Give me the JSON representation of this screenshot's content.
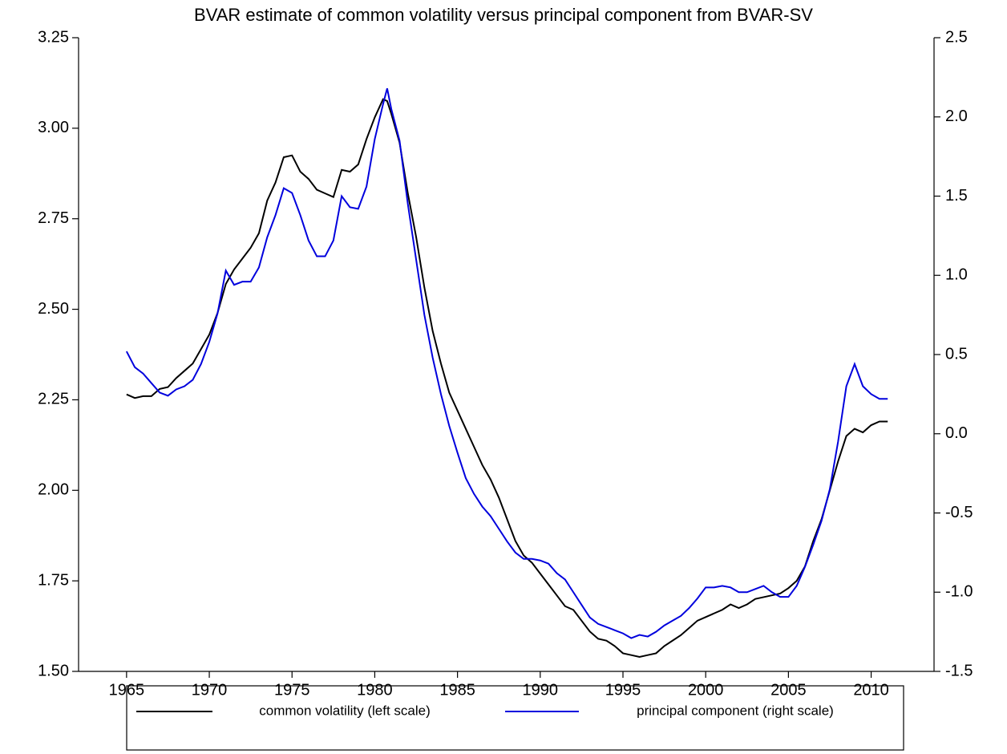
{
  "chart_data": {
    "type": "line",
    "title": "BVAR estimate of common volatility versus principal component from BVAR-SV",
    "x": [
      1965,
      1965.5,
      1966,
      1966.5,
      1967,
      1967.5,
      1968,
      1968.5,
      1969,
      1969.5,
      1970,
      1970.5,
      1971,
      1971.5,
      1972,
      1972.5,
      1973,
      1973.5,
      1974,
      1974.5,
      1975,
      1975.5,
      1976,
      1976.5,
      1977,
      1977.5,
      1978,
      1978.5,
      1979,
      1979.5,
      1980,
      1980.5,
      1980.75,
      1981,
      1981.5,
      1982,
      1982.5,
      1983,
      1983.5,
      1984,
      1984.5,
      1985,
      1985.5,
      1986,
      1986.5,
      1987,
      1987.5,
      1988,
      1988.5,
      1989,
      1989.5,
      1990,
      1990.5,
      1991,
      1991.5,
      1992,
      1992.5,
      1993,
      1993.5,
      1994,
      1994.5,
      1995,
      1995.5,
      1996,
      1996.5,
      1997,
      1997.5,
      1998,
      1998.5,
      1999,
      1999.5,
      2000,
      2000.5,
      2001,
      2001.5,
      2002,
      2002.5,
      2003,
      2003.5,
      2004,
      2004.5,
      2005,
      2005.5,
      2006,
      2006.5,
      2007,
      2007.5,
      2008,
      2008.5,
      2009,
      2009.5,
      2010,
      2010.5,
      2011
    ],
    "series": [
      {
        "name": "common volatility (left scale)",
        "color": "#000000",
        "axis": "y",
        "values": [
          2.265,
          2.255,
          2.26,
          2.26,
          2.28,
          2.285,
          2.31,
          2.33,
          2.35,
          2.39,
          2.43,
          2.49,
          2.57,
          2.61,
          2.64,
          2.67,
          2.71,
          2.8,
          2.85,
          2.92,
          2.925,
          2.88,
          2.86,
          2.83,
          2.82,
          2.81,
          2.885,
          2.88,
          2.9,
          2.97,
          3.03,
          3.08,
          3.075,
          3.04,
          2.96,
          2.82,
          2.7,
          2.56,
          2.44,
          2.35,
          2.27,
          2.22,
          2.17,
          2.12,
          2.07,
          2.03,
          1.98,
          1.92,
          1.86,
          1.82,
          1.8,
          1.77,
          1.74,
          1.71,
          1.68,
          1.67,
          1.64,
          1.61,
          1.59,
          1.585,
          1.57,
          1.55,
          1.545,
          1.54,
          1.545,
          1.55,
          1.57,
          1.585,
          1.6,
          1.62,
          1.64,
          1.65,
          1.66,
          1.67,
          1.685,
          1.675,
          1.685,
          1.7,
          1.705,
          1.71,
          1.715,
          1.73,
          1.75,
          1.79,
          1.86,
          1.92,
          2.0,
          2.08,
          2.15,
          2.17,
          2.16,
          2.18,
          2.19,
          2.19
        ]
      },
      {
        "name": "principal component (right scale)",
        "color": "#0000dd",
        "axis": "y2",
        "values": [
          0.52,
          0.42,
          0.38,
          0.32,
          0.26,
          0.24,
          0.28,
          0.3,
          0.34,
          0.44,
          0.58,
          0.76,
          1.03,
          0.94,
          0.96,
          0.96,
          1.05,
          1.24,
          1.38,
          1.55,
          1.52,
          1.38,
          1.22,
          1.12,
          1.12,
          1.22,
          1.5,
          1.43,
          1.42,
          1.56,
          1.86,
          2.08,
          2.18,
          2.05,
          1.85,
          1.45,
          1.1,
          0.75,
          0.48,
          0.25,
          0.05,
          -0.12,
          -0.28,
          -0.38,
          -0.46,
          -0.52,
          -0.6,
          -0.68,
          -0.75,
          -0.79,
          -0.79,
          -0.8,
          -0.82,
          -0.88,
          -0.92,
          -1.0,
          -1.08,
          -1.16,
          -1.2,
          -1.22,
          -1.24,
          -1.26,
          -1.29,
          -1.27,
          -1.28,
          -1.25,
          -1.21,
          -1.18,
          -1.15,
          -1.1,
          -1.04,
          -0.97,
          -0.97,
          -0.96,
          -0.97,
          -1.0,
          -1.0,
          -0.98,
          -0.96,
          -1.0,
          -1.03,
          -1.03,
          -0.96,
          -0.84,
          -0.7,
          -0.55,
          -0.35,
          -0.05,
          0.3,
          0.44,
          0.3,
          0.25,
          0.22,
          0.22
        ]
      }
    ],
    "xlim": [
      1962.1,
      2013.8
    ],
    "xticks": [
      1965,
      1970,
      1975,
      1980,
      1985,
      1990,
      1995,
      2000,
      2005,
      2010
    ],
    "ylim": [
      1.5,
      3.25
    ],
    "yticks": [
      {
        "value": 1.5,
        "label": "1.50"
      },
      1.75,
      {
        "value": 2,
        "label": "2.00"
      },
      2.25,
      {
        "value": 2.5,
        "label": "2.50"
      },
      2.75,
      {
        "value": 3,
        "label": "3.00"
      },
      3.25
    ],
    "y2lim": [
      -1.5,
      2.5
    ],
    "y2ticks": [
      -1.5,
      {
        "value": -1,
        "label": "-1.0"
      },
      -0.5,
      {
        "value": 0,
        "label": "0.0"
      },
      0.5,
      {
        "value": 1,
        "label": "1.0"
      },
      1.5,
      {
        "value": 2,
        "label": "2.0"
      },
      2.5
    ]
  }
}
